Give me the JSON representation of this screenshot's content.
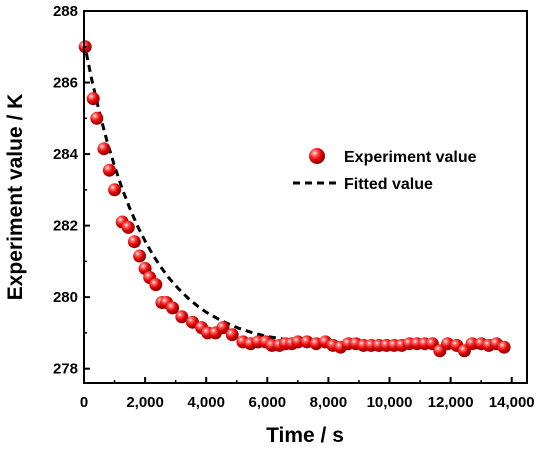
{
  "chart_data": {
    "type": "scatter",
    "xlabel": "Time / s",
    "ylabel": "Experiment value / K",
    "xlim": [
      0,
      14500
    ],
    "ylim": [
      277.6,
      288
    ],
    "x_ticks": [
      0,
      2000,
      4000,
      6000,
      8000,
      10000,
      12000,
      14000
    ],
    "x_tick_labels": [
      "0",
      "2,000",
      "4,000",
      "6,000",
      "8,000",
      "10,000",
      "12,000",
      "14,000"
    ],
    "y_ticks": [
      278,
      280,
      282,
      284,
      286,
      288
    ],
    "y_tick_labels": [
      "278",
      "280",
      "282",
      "284",
      "286",
      "288"
    ],
    "grid": false,
    "legend_position": "center-right",
    "series": [
      {
        "name": "Experiment value",
        "kind": "scatter",
        "color": "#e00000",
        "x": [
          40,
          300,
          420,
          650,
          830,
          1000,
          1250,
          1450,
          1650,
          1820,
          2000,
          2150,
          2350,
          2550,
          2700,
          2900,
          3200,
          3550,
          3850,
          4050,
          4300,
          4550,
          4850,
          5200,
          5450,
          5700,
          5950,
          6150,
          6400,
          6600,
          6800,
          7000,
          7300,
          7600,
          7900,
          8150,
          8400,
          8650,
          8900,
          9150,
          9400,
          9650,
          9900,
          10150,
          10400,
          10650,
          10900,
          11150,
          11400,
          11650,
          11900,
          12200,
          12450,
          12700,
          13000,
          13250,
          13500,
          13750
        ],
        "y": [
          287.0,
          285.55,
          285.0,
          284.15,
          283.55,
          283.0,
          282.1,
          281.95,
          281.55,
          281.15,
          280.8,
          280.55,
          280.35,
          279.85,
          279.85,
          279.7,
          279.45,
          279.3,
          279.15,
          279.0,
          279.0,
          279.15,
          278.95,
          278.75,
          278.7,
          278.75,
          278.75,
          278.65,
          278.65,
          278.7,
          278.7,
          278.75,
          278.75,
          278.7,
          278.75,
          278.65,
          278.6,
          278.7,
          278.7,
          278.65,
          278.65,
          278.65,
          278.65,
          278.65,
          278.65,
          278.7,
          278.7,
          278.7,
          278.7,
          278.5,
          278.7,
          278.65,
          278.5,
          278.7,
          278.7,
          278.65,
          278.7,
          278.6
        ]
      },
      {
        "name": "Fitted value",
        "kind": "dashed-line",
        "color": "#000000",
        "x": [
          0,
          250,
          500,
          750,
          1000,
          1250,
          1500,
          1750,
          2000,
          2250,
          2500,
          2750,
          3000,
          3250,
          3500,
          3750,
          4000,
          4500,
          5000,
          5500,
          6000,
          7000,
          8000,
          9000,
          10000,
          11000,
          12000,
          13000,
          13800
        ],
        "y": [
          287.15,
          286.1,
          285.18,
          284.37,
          283.66,
          283.03,
          282.48,
          281.99,
          281.57,
          281.19,
          280.86,
          280.57,
          280.32,
          280.1,
          279.9,
          279.73,
          279.58,
          279.34,
          279.15,
          279.01,
          278.9,
          278.76,
          278.68,
          278.63,
          278.61,
          278.6,
          278.59,
          278.59,
          278.59
        ]
      }
    ]
  }
}
